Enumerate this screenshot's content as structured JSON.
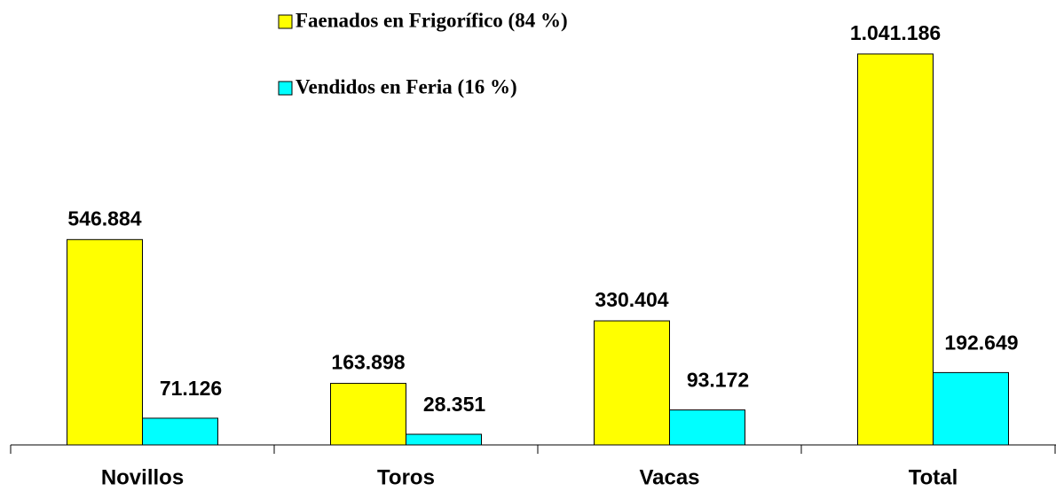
{
  "chart_data": {
    "type": "bar",
    "categories": [
      "Novillos",
      "Toros",
      "Vacas",
      "Total"
    ],
    "series": [
      {
        "name": "Faenados en Frigorífico (84 %)",
        "color": "#ffff00",
        "values": [
          546884,
          163898,
          330404,
          1041186
        ],
        "value_labels": [
          "546.884",
          "163.898",
          "330.404",
          "1.041.186"
        ]
      },
      {
        "name": "Vendidos en Feria (16 %)",
        "color": "#00ffff",
        "values": [
          71126,
          28351,
          93172,
          192649
        ],
        "value_labels": [
          "71.126",
          "28.351",
          "93.172",
          "192.649"
        ]
      }
    ],
    "ylim": [
      0,
      1100000
    ],
    "grid": false
  }
}
